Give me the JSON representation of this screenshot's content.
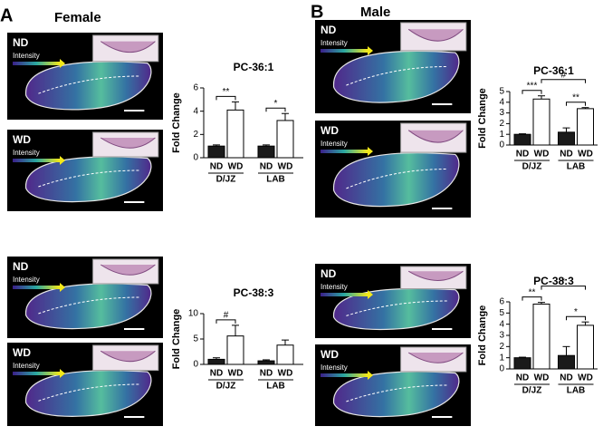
{
  "panels": [
    {
      "label": "A",
      "title": "Female"
    },
    {
      "label": "B",
      "title": "Male"
    }
  ],
  "images": [
    {
      "label": "ND",
      "legend": "Intensity"
    },
    {
      "label": "WD",
      "legend": "Intensity"
    },
    {
      "label": "ND",
      "legend": "Intensity"
    },
    {
      "label": "WD",
      "legend": "Intensity"
    },
    {
      "label": "ND",
      "legend": "Intensity"
    },
    {
      "label": "WD",
      "legend": "Intensity"
    },
    {
      "label": "ND",
      "legend": "Intensity"
    },
    {
      "label": "WD",
      "legend": "Intensity"
    }
  ],
  "chart_data": [
    {
      "type": "bar",
      "title": "PC-36:1",
      "y_label": "Fold Change",
      "categories": [
        "D/JZ",
        "LAB"
      ],
      "series": [
        {
          "name": "ND",
          "color": "#1a1a1a",
          "values": [
            1,
            1
          ],
          "errors": [
            0.1,
            0.1
          ]
        },
        {
          "name": "WD",
          "color": "#ffffff",
          "values": [
            4.1,
            3.2
          ],
          "errors": [
            0.7,
            0.6
          ]
        }
      ],
      "ylim": [
        0,
        6
      ],
      "yticks": [
        0,
        2,
        4,
        6
      ],
      "annotations": [
        "**",
        "*"
      ]
    },
    {
      "type": "bar",
      "title": "PC-38:3",
      "y_label": "Fold Change",
      "categories": [
        "D/JZ",
        "LAB"
      ],
      "series": [
        {
          "name": "ND",
          "color": "#1a1a1a",
          "values": [
            1,
            0.7
          ],
          "errors": [
            0.3,
            0.2
          ]
        },
        {
          "name": "WD",
          "color": "#ffffff",
          "values": [
            5.6,
            3.8
          ],
          "errors": [
            2.1,
            1.0
          ]
        }
      ],
      "ylim": [
        0,
        10
      ],
      "yticks": [
        0,
        5,
        10
      ],
      "annotations": [
        "#"
      ]
    },
    {
      "type": "bar",
      "title": "PC-36:1",
      "y_label": "Fold Change",
      "categories": [
        "D/JZ",
        "LAB"
      ],
      "series": [
        {
          "name": "ND",
          "color": "#1a1a1a",
          "values": [
            1,
            1.2
          ],
          "errors": [
            0.05,
            0.4
          ]
        },
        {
          "name": "WD",
          "color": "#ffffff",
          "values": [
            4.3,
            3.4
          ],
          "errors": [
            0.3,
            0.1
          ]
        }
      ],
      "ylim": [
        0,
        5
      ],
      "yticks": [
        0,
        1,
        2,
        3,
        4,
        5
      ],
      "annotations": [
        "***",
        "**",
        "#"
      ]
    },
    {
      "type": "bar",
      "title": "PC-38:3",
      "y_label": "Fold Change",
      "categories": [
        "D/JZ",
        "LAB"
      ],
      "series": [
        {
          "name": "ND",
          "color": "#1a1a1a",
          "values": [
            1,
            1.2
          ],
          "errors": [
            0.05,
            0.8
          ]
        },
        {
          "name": "WD",
          "color": "#ffffff",
          "values": [
            5.8,
            3.9
          ],
          "errors": [
            0.15,
            0.3
          ]
        }
      ],
      "ylim": [
        0,
        6
      ],
      "yticks": [
        0,
        1,
        2,
        3,
        4,
        5,
        6
      ],
      "annotations": [
        "**",
        "*",
        "*"
      ]
    }
  ]
}
